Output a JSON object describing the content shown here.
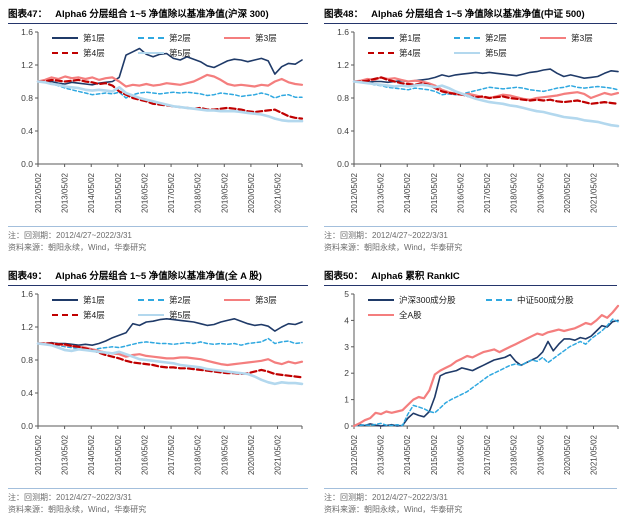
{
  "notes": {
    "backtest": "注：回测期：2012/4/27~2022/3/31",
    "source": "资料来源：朝阳永续，Wind，华泰研究"
  },
  "axis_style": {
    "axis_color": "#595959",
    "tick_label_color": "#404040"
  },
  "chart_data": [
    {
      "type": "line",
      "figure_label": "图表47：",
      "title": "Alpha6 分层组合 1~5 净值除以基准净值(沪深 300)",
      "note": "注：回测期：2012/4/27~2022/3/31",
      "source": "资料来源：朝阳永续，Wind，华泰研究",
      "ylim": [
        0,
        1.6
      ],
      "yticks": [
        "0.0",
        "0.4",
        "0.8",
        "1.2",
        "1.6"
      ],
      "categories": [
        "2012/05/02",
        "2013/05/02",
        "2014/05/02",
        "2015/05/02",
        "2016/05/02",
        "2017/05/02",
        "2018/05/02",
        "2019/05/02",
        "2020/05/02",
        "2021/05/02"
      ],
      "x_years_span": 9.92,
      "grid": false,
      "legend_position": "top-inside",
      "series": [
        {
          "name": "第1层",
          "color": "#1f3a68",
          "width": 1.6,
          "dash": null,
          "values": [
            1.0,
            0.99,
            1.0,
            0.98,
            0.97,
            0.99,
            0.98,
            0.97,
            0.96,
            0.98,
            0.99,
            1.0,
            1.05,
            1.32,
            1.36,
            1.4,
            1.33,
            1.3,
            1.33,
            1.34,
            1.28,
            1.26,
            1.3,
            1.27,
            1.24,
            1.19,
            1.17,
            1.21,
            1.25,
            1.27,
            1.26,
            1.24,
            1.26,
            1.28,
            1.25,
            1.09,
            1.18,
            1.22,
            1.21,
            1.26
          ]
        },
        {
          "name": "第2层",
          "color": "#2fa8e0",
          "width": 1.5,
          "dash": "3.5 2.5",
          "values": [
            1.0,
            0.99,
            0.97,
            0.95,
            0.92,
            0.9,
            0.88,
            0.86,
            0.84,
            0.85,
            0.86,
            0.85,
            0.87,
            0.8,
            0.84,
            0.86,
            0.87,
            0.86,
            0.85,
            0.86,
            0.87,
            0.86,
            0.87,
            0.86,
            0.85,
            0.83,
            0.84,
            0.86,
            0.85,
            0.84,
            0.82,
            0.83,
            0.84,
            0.86,
            0.84,
            0.8,
            0.83,
            0.84,
            0.81,
            0.81
          ]
        },
        {
          "name": "第3层",
          "color": "#f47e7e",
          "width": 2.2,
          "dash": null,
          "values": [
            1.0,
            1.02,
            1.05,
            1.03,
            1.06,
            1.04,
            1.05,
            1.03,
            1.05,
            1.02,
            1.04,
            1.05,
            1.0,
            0.94,
            0.96,
            0.95,
            0.97,
            0.95,
            0.96,
            0.98,
            0.97,
            0.96,
            0.98,
            1.0,
            1.04,
            1.08,
            1.06,
            1.02,
            0.97,
            0.95,
            0.96,
            0.95,
            0.94,
            0.96,
            0.95,
            1.0,
            1.03,
            0.99,
            0.97,
            0.96
          ]
        },
        {
          "name": "第4层",
          "color": "#c00000",
          "width": 2.2,
          "dash": "6 3",
          "values": [
            1.0,
            1.0,
            1.02,
            1.01,
            1.0,
            1.01,
            1.02,
            1.0,
            0.99,
            0.97,
            0.98,
            0.95,
            0.88,
            0.84,
            0.8,
            0.78,
            0.76,
            0.73,
            0.72,
            0.71,
            0.7,
            0.69,
            0.68,
            0.67,
            0.68,
            0.66,
            0.66,
            0.67,
            0.68,
            0.67,
            0.66,
            0.64,
            0.63,
            0.64,
            0.65,
            0.66,
            0.62,
            0.58,
            0.56,
            0.55
          ]
        },
        {
          "name": "第5层",
          "color": "#b3d8ee",
          "width": 2.6,
          "dash": null,
          "values": [
            1.0,
            0.99,
            0.97,
            0.96,
            0.94,
            0.93,
            0.92,
            0.9,
            0.89,
            0.9,
            0.89,
            0.88,
            0.93,
            0.86,
            0.83,
            0.8,
            0.78,
            0.76,
            0.74,
            0.72,
            0.7,
            0.69,
            0.68,
            0.67,
            0.66,
            0.65,
            0.65,
            0.64,
            0.64,
            0.64,
            0.63,
            0.62,
            0.61,
            0.6,
            0.58,
            0.55,
            0.53,
            0.52,
            0.52,
            0.52
          ]
        }
      ]
    },
    {
      "type": "line",
      "figure_label": "图表48：",
      "title": "Alpha6 分层组合 1~5 净值除以基准净值(中证 500)",
      "note": "注：回测期：2012/4/27~2022/3/31",
      "source": "资料来源：朝阳永续，Wind，华泰研究",
      "ylim": [
        0,
        1.6
      ],
      "yticks": [
        "0.0",
        "0.4",
        "0.8",
        "1.2",
        "1.6"
      ],
      "categories": [
        "2012/05/02",
        "2013/05/02",
        "2014/05/02",
        "2015/05/02",
        "2016/05/02",
        "2017/05/02",
        "2018/05/02",
        "2019/05/02",
        "2020/05/02",
        "2021/05/02"
      ],
      "x_years_span": 9.92,
      "grid": false,
      "legend_position": "top-inside",
      "series": [
        {
          "name": "第1层",
          "color": "#1f3a68",
          "width": 1.6,
          "dash": null,
          "values": [
            1.0,
            1.0,
            0.99,
            1.0,
            1.0,
            0.99,
            1.0,
            1.01,
            1.0,
            1.01,
            1.02,
            1.03,
            1.05,
            1.08,
            1.06,
            1.08,
            1.09,
            1.1,
            1.11,
            1.1,
            1.11,
            1.1,
            1.09,
            1.08,
            1.07,
            1.09,
            1.11,
            1.12,
            1.14,
            1.15,
            1.1,
            1.06,
            1.08,
            1.06,
            1.04,
            1.05,
            1.06,
            1.1,
            1.13,
            1.12
          ]
        },
        {
          "name": "第2层",
          "color": "#2fa8e0",
          "width": 1.5,
          "dash": "3.5 2.5",
          "values": [
            1.0,
            0.99,
            0.98,
            0.96,
            0.95,
            0.93,
            0.92,
            0.91,
            0.9,
            0.92,
            0.91,
            0.9,
            0.88,
            0.84,
            0.85,
            0.84,
            0.85,
            0.87,
            0.89,
            0.91,
            0.93,
            0.92,
            0.91,
            0.92,
            0.93,
            0.92,
            0.9,
            0.89,
            0.88,
            0.9,
            0.92,
            0.93,
            0.95,
            0.93,
            0.92,
            0.93,
            0.94,
            0.93,
            0.92,
            0.9
          ]
        },
        {
          "name": "第3层",
          "color": "#f47e7e",
          "width": 2.2,
          "dash": null,
          "values": [
            1.0,
            1.01,
            1.03,
            1.02,
            1.05,
            1.03,
            1.04,
            1.02,
            1.0,
            1.01,
            1.0,
            0.98,
            0.95,
            0.9,
            0.87,
            0.85,
            0.84,
            0.85,
            0.83,
            0.81,
            0.8,
            0.82,
            0.84,
            0.83,
            0.81,
            0.79,
            0.78,
            0.8,
            0.81,
            0.82,
            0.83,
            0.85,
            0.86,
            0.87,
            0.85,
            0.8,
            0.83,
            0.86,
            0.84,
            0.86
          ]
        },
        {
          "name": "第4层",
          "color": "#c00000",
          "width": 2.2,
          "dash": "6 3",
          "values": [
            1.0,
            1.0,
            1.01,
            1.03,
            1.05,
            1.02,
            1.0,
            0.98,
            0.97,
            0.96,
            0.98,
            0.96,
            0.92,
            0.88,
            0.86,
            0.85,
            0.84,
            0.82,
            0.81,
            0.82,
            0.8,
            0.81,
            0.82,
            0.8,
            0.79,
            0.78,
            0.77,
            0.78,
            0.77,
            0.78,
            0.76,
            0.75,
            0.76,
            0.77,
            0.75,
            0.73,
            0.74,
            0.75,
            0.74,
            0.73
          ]
        },
        {
          "name": "第5层",
          "color": "#b3d8ee",
          "width": 2.6,
          "dash": null,
          "values": [
            1.0,
            0.99,
            0.98,
            0.97,
            0.96,
            0.95,
            0.94,
            0.95,
            0.94,
            0.95,
            0.96,
            0.95,
            0.93,
            0.95,
            0.92,
            0.88,
            0.85,
            0.82,
            0.79,
            0.77,
            0.75,
            0.74,
            0.73,
            0.71,
            0.7,
            0.68,
            0.66,
            0.64,
            0.63,
            0.61,
            0.59,
            0.57,
            0.56,
            0.55,
            0.53,
            0.52,
            0.51,
            0.49,
            0.47,
            0.46
          ]
        }
      ]
    },
    {
      "type": "line",
      "figure_label": "图表49：",
      "title": "Alpha6 分层组合 1~5 净值除以基准净值(全 A 股)",
      "note": "注：回测期：2012/4/27~2022/3/31",
      "source": "资料来源：朝阳永续，Wind，华泰研究",
      "ylim": [
        0,
        1.6
      ],
      "yticks": [
        "0.0",
        "0.4",
        "0.8",
        "1.2",
        "1.6"
      ],
      "categories": [
        "2012/05/02",
        "2013/05/02",
        "2014/05/02",
        "2015/05/02",
        "2016/05/02",
        "2017/05/02",
        "2018/05/02",
        "2019/05/02",
        "2020/05/02",
        "2021/05/02"
      ],
      "x_years_span": 9.92,
      "grid": false,
      "legend_position": "top-inside",
      "series": [
        {
          "name": "第1层",
          "color": "#1f3a68",
          "width": 1.6,
          "dash": null,
          "values": [
            1.0,
            1.0,
            1.01,
            1.0,
            1.0,
            0.99,
            0.98,
            0.99,
            0.98,
            1.0,
            1.03,
            1.07,
            1.1,
            1.13,
            1.24,
            1.22,
            1.26,
            1.27,
            1.29,
            1.3,
            1.29,
            1.28,
            1.27,
            1.26,
            1.24,
            1.22,
            1.23,
            1.26,
            1.28,
            1.3,
            1.27,
            1.24,
            1.22,
            1.23,
            1.21,
            1.15,
            1.2,
            1.24,
            1.23,
            1.26
          ]
        },
        {
          "name": "第2层",
          "color": "#2fa8e0",
          "width": 1.5,
          "dash": "3.5 2.5",
          "values": [
            1.0,
            1.0,
            0.99,
            0.98,
            0.96,
            0.95,
            0.94,
            0.93,
            0.92,
            0.94,
            0.95,
            0.96,
            0.95,
            0.97,
            0.99,
            1.01,
            1.02,
            1.01,
            1.0,
            1.0,
            0.99,
            1.0,
            1.01,
            1.0,
            1.02,
            1.0,
            0.99,
            1.0,
            0.99,
            1.0,
            0.98,
            1.0,
            1.01,
            1.02,
            1.06,
            1.0,
            1.02,
            1.03,
            1.0,
            1.01
          ]
        },
        {
          "name": "第3层",
          "color": "#f47e7e",
          "width": 2.2,
          "dash": null,
          "values": [
            1.0,
            1.0,
            1.0,
            0.99,
            0.98,
            0.97,
            0.96,
            0.95,
            0.93,
            0.91,
            0.89,
            0.88,
            0.87,
            0.84,
            0.86,
            0.87,
            0.85,
            0.84,
            0.83,
            0.82,
            0.82,
            0.83,
            0.83,
            0.82,
            0.81,
            0.79,
            0.77,
            0.75,
            0.74,
            0.75,
            0.76,
            0.77,
            0.78,
            0.79,
            0.81,
            0.77,
            0.75,
            0.78,
            0.76,
            0.78
          ]
        },
        {
          "name": "第4层",
          "color": "#c00000",
          "width": 2.2,
          "dash": "6 3",
          "values": [
            1.0,
            1.0,
            1.0,
            0.99,
            0.99,
            0.97,
            0.96,
            0.94,
            0.92,
            0.89,
            0.86,
            0.84,
            0.82,
            0.79,
            0.77,
            0.76,
            0.75,
            0.74,
            0.72,
            0.71,
            0.71,
            0.7,
            0.7,
            0.69,
            0.68,
            0.67,
            0.66,
            0.65,
            0.64,
            0.64,
            0.63,
            0.64,
            0.66,
            0.68,
            0.66,
            0.63,
            0.62,
            0.61,
            0.6,
            0.59
          ]
        },
        {
          "name": "第5层",
          "color": "#b3d8ee",
          "width": 2.6,
          "dash": null,
          "values": [
            1.0,
            0.99,
            0.98,
            0.95,
            0.92,
            0.91,
            0.93,
            0.92,
            0.91,
            0.9,
            0.89,
            0.88,
            0.9,
            0.87,
            0.84,
            0.81,
            0.8,
            0.79,
            0.78,
            0.77,
            0.76,
            0.74,
            0.73,
            0.72,
            0.71,
            0.69,
            0.68,
            0.67,
            0.66,
            0.65,
            0.64,
            0.63,
            0.6,
            0.56,
            0.53,
            0.51,
            0.53,
            0.52,
            0.52,
            0.51
          ]
        }
      ]
    },
    {
      "type": "line",
      "figure_label": "图表50：",
      "title": "Alpha6 累积 RankIC",
      "note": "注：回测期：2012/4/27~2022/3/31",
      "source": "资料来源：朝阳永续，Wind，华泰研究",
      "ylim": [
        0,
        5
      ],
      "yticks": [
        "0",
        "1",
        "2",
        "3",
        "4",
        "5"
      ],
      "categories": [
        "2012/05/02",
        "2013/05/02",
        "2014/05/02",
        "2015/05/02",
        "2016/05/02",
        "2017/05/02",
        "2018/05/02",
        "2019/05/02",
        "2020/05/02",
        "2021/05/02"
      ],
      "x_years_span": 9.92,
      "grid": false,
      "legend_position": "top-inside",
      "series": [
        {
          "name": "沪深300成分股",
          "color": "#1f3a68",
          "width": 1.6,
          "dash": null,
          "values": [
            0.0,
            0.05,
            0.02,
            0.08,
            0.03,
            0.0,
            0.02,
            0.05,
            0.0,
            0.02,
            0.3,
            0.48,
            0.4,
            0.35,
            0.55,
            1.1,
            1.9,
            2.0,
            2.05,
            2.1,
            2.2,
            2.15,
            2.1,
            2.2,
            2.3,
            2.4,
            2.5,
            2.55,
            2.6,
            2.7,
            2.45,
            2.3,
            2.4,
            2.5,
            2.6,
            2.8,
            3.2,
            2.85,
            3.1,
            3.3,
            3.3,
            3.25,
            3.35,
            3.3,
            3.4,
            3.6,
            3.8,
            3.75,
            3.95,
            4.0
          ]
        },
        {
          "name": "中证500成分股",
          "color": "#2fa8e0",
          "width": 1.5,
          "dash": "3.5 2.5",
          "values": [
            0.0,
            0.02,
            0.05,
            0.02,
            0.06,
            0.1,
            0.03,
            0.02,
            0.05,
            0.02,
            0.45,
            0.78,
            0.72,
            0.65,
            0.55,
            0.5,
            0.68,
            0.88,
            1.0,
            1.1,
            1.2,
            1.3,
            1.45,
            1.6,
            1.75,
            1.9,
            2.0,
            2.1,
            2.2,
            2.3,
            2.35,
            2.3,
            2.4,
            2.5,
            2.45,
            2.6,
            2.4,
            2.55,
            2.7,
            2.85,
            3.0,
            3.1,
            3.2,
            3.1,
            3.3,
            3.45,
            3.6,
            3.8,
            4.05,
            3.95
          ]
        },
        {
          "name": "全A股",
          "color": "#f47e7e",
          "width": 2.2,
          "dash": null,
          "values": [
            0.0,
            0.1,
            0.22,
            0.3,
            0.5,
            0.45,
            0.55,
            0.5,
            0.55,
            0.6,
            0.8,
            1.0,
            1.1,
            1.05,
            1.35,
            1.95,
            2.1,
            2.2,
            2.3,
            2.45,
            2.55,
            2.65,
            2.6,
            2.7,
            2.8,
            2.85,
            2.9,
            2.8,
            2.9,
            3.0,
            3.1,
            3.2,
            3.3,
            3.4,
            3.5,
            3.45,
            3.55,
            3.6,
            3.65,
            3.6,
            3.65,
            3.7,
            3.8,
            3.9,
            3.85,
            4.0,
            4.2,
            4.1,
            4.3,
            4.55
          ]
        }
      ]
    }
  ]
}
